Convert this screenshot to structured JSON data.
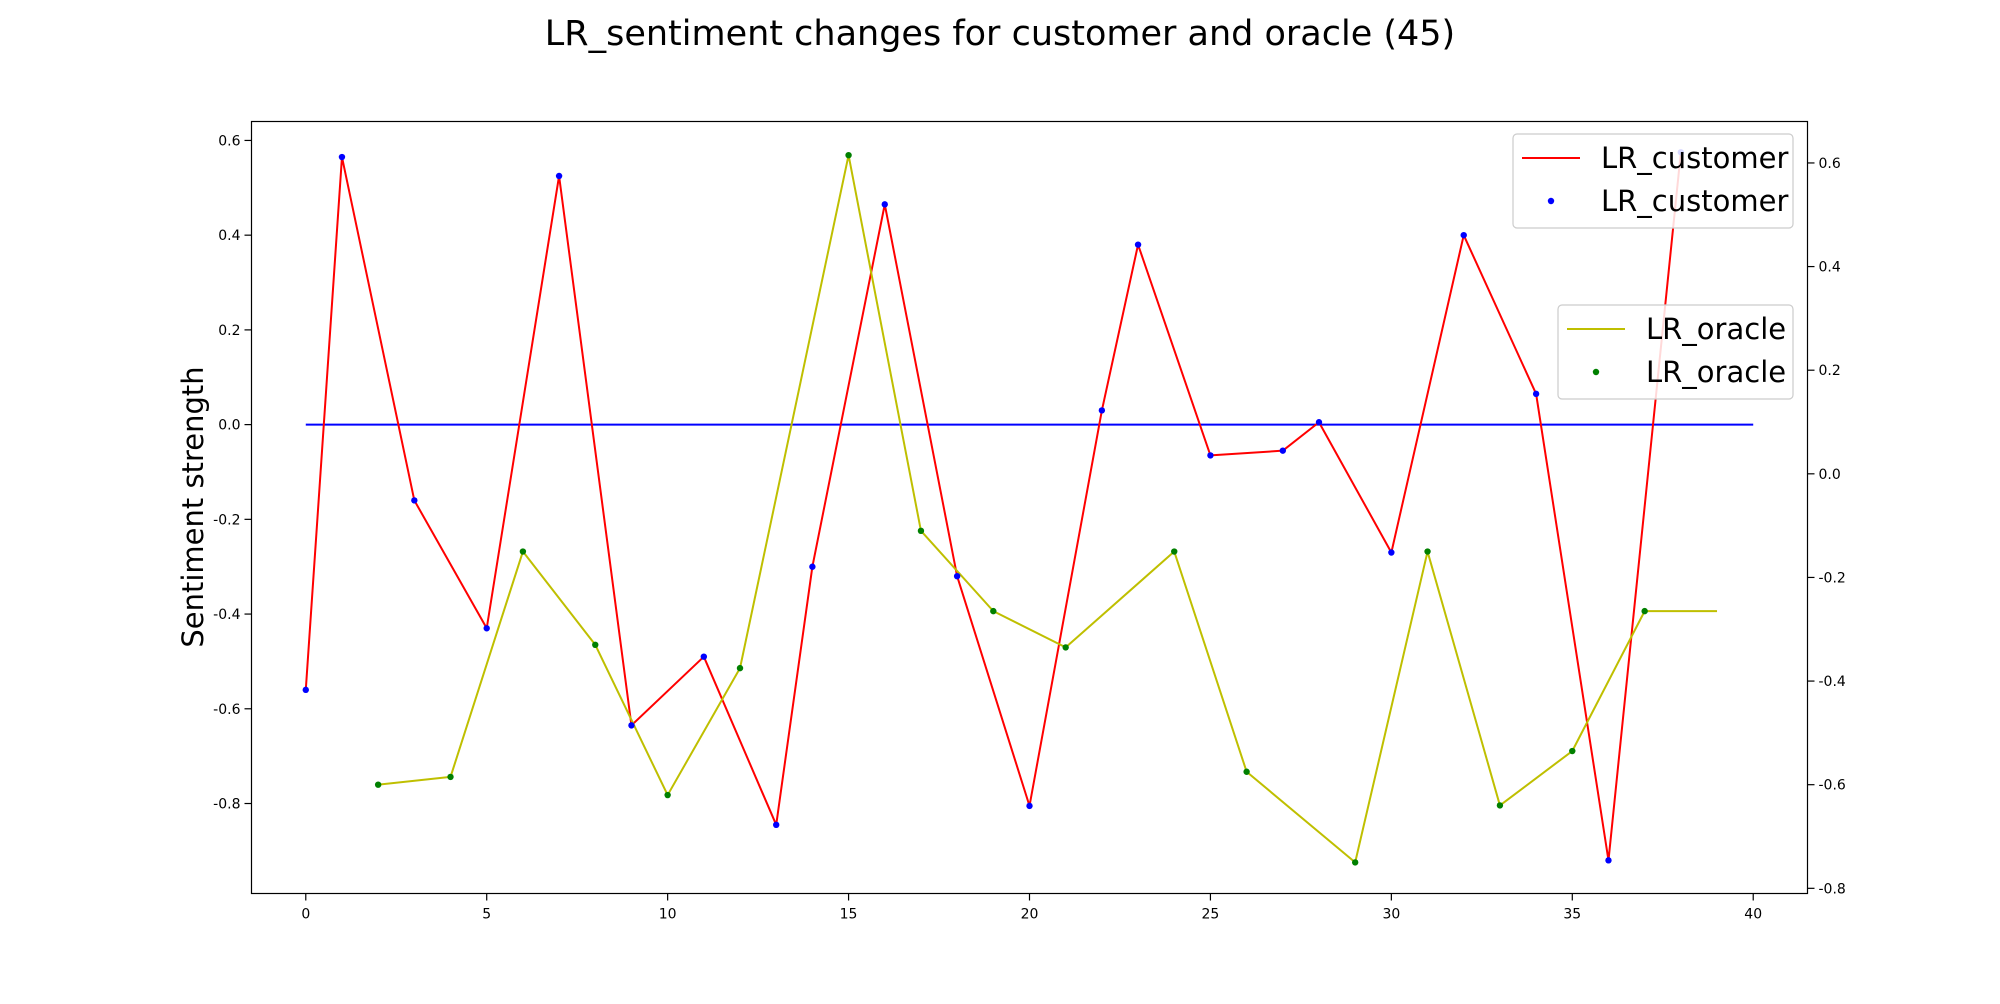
{
  "chart_data": {
    "type": "line",
    "title": "LR_sentiment changes for customer and oracle (45)",
    "xlabel": "",
    "ylabel": "Sentiment strength",
    "xlim": [
      -1.5,
      41.5
    ],
    "ylim_left": [
      -0.99,
      0.64
    ],
    "ylim_right": [
      -0.81,
      0.68
    ],
    "x_ticks": [
      0,
      5,
      10,
      15,
      20,
      25,
      30,
      35,
      40
    ],
    "y_ticks_left": [
      0.6,
      0.4,
      0.2,
      0.0,
      -0.2,
      -0.4,
      -0.6,
      -0.8
    ],
    "y_ticks_right": [
      0.6,
      0.4,
      0.2,
      0.0,
      -0.2,
      -0.4,
      -0.6,
      -0.8
    ],
    "y_tick_labels_left": [
      "0.6",
      "0.4",
      "0.2",
      "0.0",
      "-0.2",
      "-0.4",
      "-0.6",
      "-0.8"
    ],
    "y_tick_labels_right": [
      "0.6",
      "0.4",
      "0.2",
      "0.0",
      "-0.2",
      "-0.4",
      "-0.6",
      "-0.8"
    ],
    "reference_line": {
      "y": 0.0,
      "x_from": 0,
      "x_to": 40,
      "color": "#0000ff",
      "axis": "left"
    },
    "series": [
      {
        "name": "LR_customer",
        "axis": "left",
        "line_color": "#ff0000",
        "marker_color": "#0000ff",
        "x": [
          0,
          1,
          3,
          5,
          7,
          9,
          11,
          13,
          14,
          16,
          18,
          20,
          22,
          23,
          25,
          27,
          28,
          30,
          32,
          34,
          36,
          38
        ],
        "y": [
          -0.56,
          0.565,
          -0.16,
          -0.43,
          0.525,
          -0.635,
          -0.49,
          -0.845,
          -0.3,
          0.465,
          -0.32,
          -0.805,
          0.03,
          0.38,
          -0.065,
          -0.055,
          0.005,
          -0.27,
          0.4,
          0.065,
          -0.92,
          0.575
        ]
      },
      {
        "name": "LR_oracle",
        "axis": "right",
        "line_color": "#bfbf00",
        "marker_color": "#008000",
        "x": [
          2,
          4,
          6,
          8,
          10,
          12,
          15,
          17,
          19,
          21,
          24,
          26,
          29,
          31,
          33,
          35,
          37,
          39
        ],
        "y": [
          -0.6,
          -0.585,
          -0.15,
          -0.33,
          -0.62,
          -0.375,
          0.615,
          -0.11,
          -0.265,
          -0.335,
          -0.15,
          -0.575,
          -0.75,
          -0.15,
          -0.64,
          -0.535,
          -0.265,
          -0.265
        ],
        "marker_count": 17
      }
    ],
    "legends": [
      {
        "position": "top-right",
        "entries": [
          {
            "label": "LR_customer",
            "kind": "line",
            "color": "#ff0000"
          },
          {
            "label": "LR_customer",
            "kind": "marker",
            "color": "#0000ff"
          }
        ]
      },
      {
        "position": "upper-right",
        "entries": [
          {
            "label": "LR_oracle",
            "kind": "line",
            "color": "#bfbf00"
          },
          {
            "label": "LR_oracle",
            "kind": "marker",
            "color": "#008000"
          }
        ]
      }
    ]
  }
}
